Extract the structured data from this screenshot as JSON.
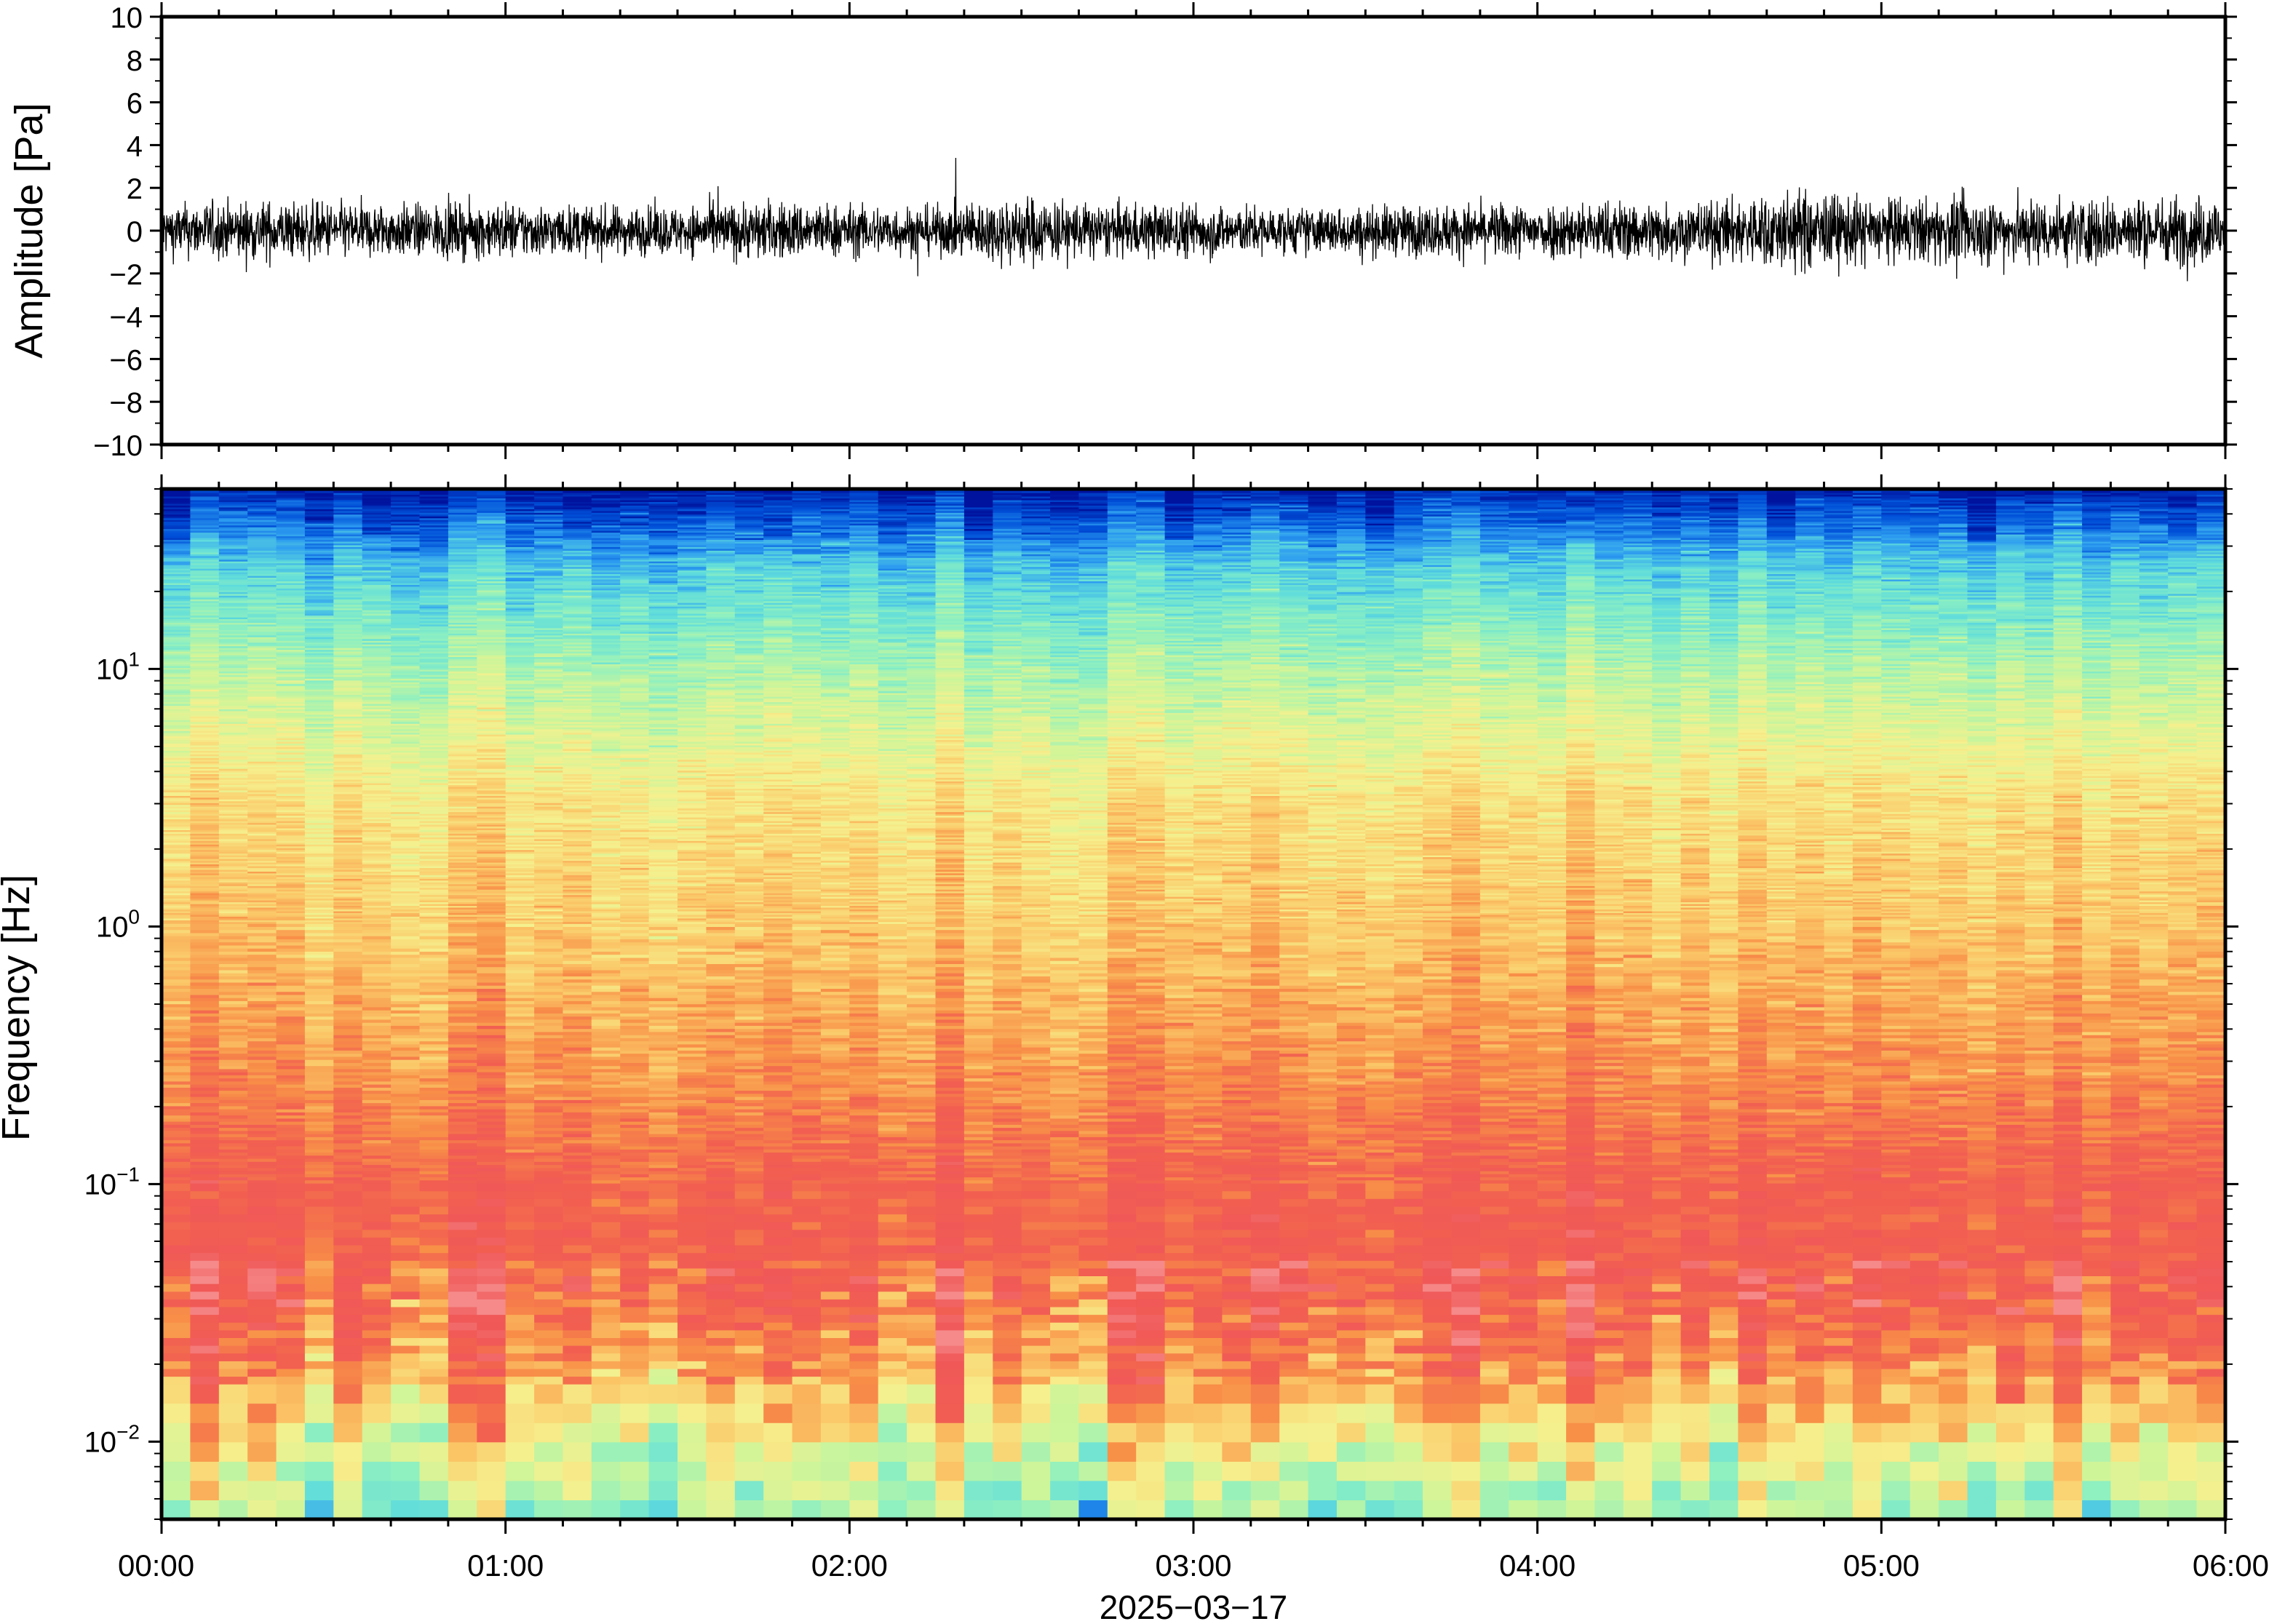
{
  "chart_data": [
    {
      "type": "line",
      "panel": "waveform",
      "ylabel": "Amplitude [Pa]",
      "ylim": [
        -10,
        10
      ],
      "yticks": [
        10,
        8,
        6,
        4,
        2,
        0,
        -2,
        -4,
        -6,
        -8,
        -10
      ],
      "ytick_labels": [
        "10",
        "8",
        "6",
        "4",
        "2",
        "0",
        "−2",
        "−4",
        "−6",
        "−8",
        "−10"
      ],
      "xlim": [
        "00:00",
        "06:00"
      ],
      "series": [
        {
          "color": "#000000",
          "x_hours": [
            0.0,
            0.25,
            0.5,
            0.75,
            1.0,
            1.25,
            1.5,
            1.75,
            2.0,
            2.25,
            2.5,
            2.75,
            3.0,
            3.25,
            3.5,
            3.75,
            4.0,
            4.25,
            4.5,
            4.75,
            5.0,
            5.25,
            5.5,
            5.75,
            6.0
          ],
          "envelope_pa": [
            1.4,
            1.6,
            1.5,
            1.4,
            1.5,
            1.3,
            1.3,
            1.6,
            1.4,
            1.3,
            1.9,
            1.4,
            1.5,
            1.2,
            1.3,
            1.4,
            1.5,
            1.6,
            1.6,
            2.2,
            1.7,
            1.8,
            1.8,
            1.8,
            1.9
          ]
        }
      ]
    },
    {
      "type": "heatmap",
      "panel": "spectrogram",
      "ylabel": "Frequency [Hz]",
      "yscale": "log",
      "ylim": [
        0.005,
        50
      ],
      "yticks": [
        0.01,
        0.1,
        1,
        10
      ],
      "ytick_labels": [
        {
          "base": "10",
          "exp": "−2"
        },
        {
          "base": "10",
          "exp": "−1"
        },
        {
          "base": "10",
          "exp": "0"
        },
        {
          "base": "10",
          "exp": "1"
        }
      ],
      "xlabel": "2025−03−17",
      "xlim": [
        "00:00",
        "06:00"
      ],
      "xtick_labels": [
        "00:00",
        "01:00",
        "02:00",
        "03:00",
        "04:00",
        "05:00",
        "06:00"
      ],
      "colormap": [
        "#00139e",
        "#0050d8",
        "#2d9cf0",
        "#5fdcdc",
        "#8ff0c0",
        "#cdf59a",
        "#f6f08e",
        "#fbc868",
        "#f89048",
        "#f26050",
        "#f05858",
        "#f68a8a"
      ],
      "profile_log10f": [
        -2.3,
        -2.0,
        -1.7,
        -1.4,
        -1.0,
        -0.6,
        0.0,
        0.5,
        1.0,
        1.4,
        1.7
      ],
      "profile_level": [
        4.2,
        6.0,
        8.2,
        9.3,
        9.1,
        8.1,
        7.0,
        6.4,
        4.6,
        2.8,
        0.3
      ]
    }
  ]
}
